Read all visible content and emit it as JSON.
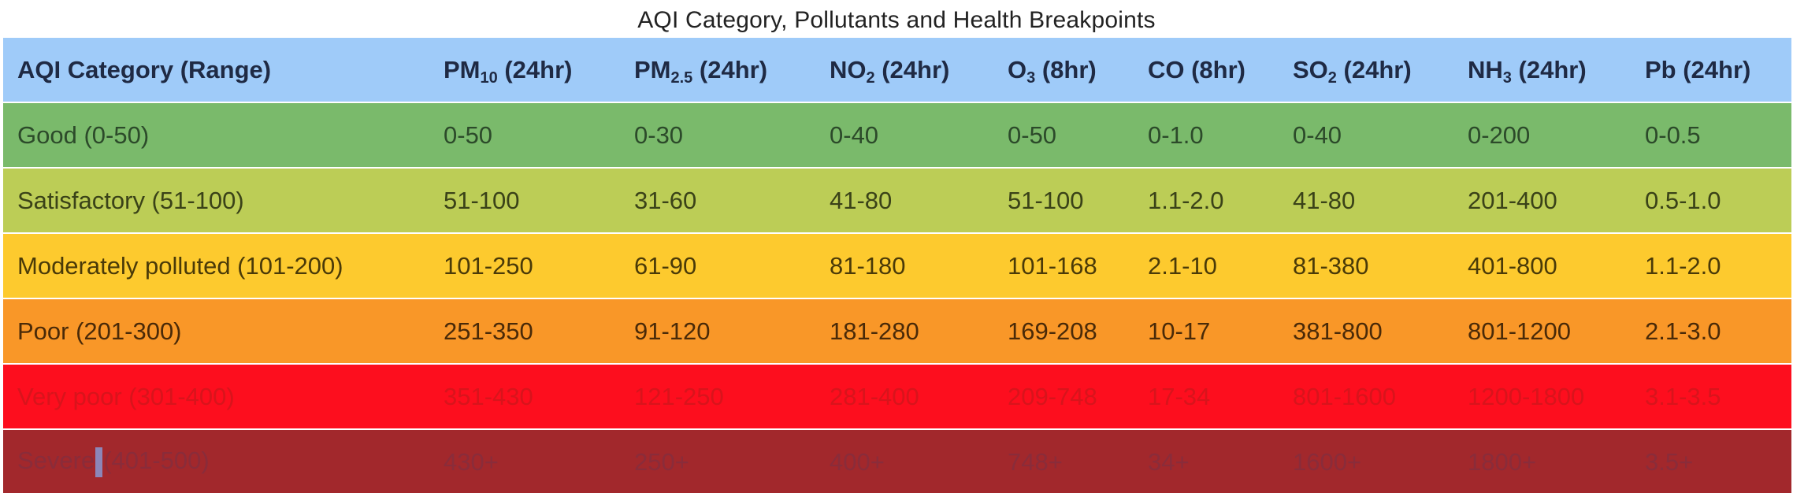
{
  "title": "AQI Category, Pollutants and Health Breakpoints",
  "headers": [
    {
      "main": "AQI Category (Range)",
      "sub": "",
      "rest": ""
    },
    {
      "main": "PM",
      "sub": "10",
      "rest": " (24hr)"
    },
    {
      "main": "PM",
      "sub": "2.5",
      "rest": " (24hr)"
    },
    {
      "main": "NO",
      "sub": "2",
      "rest": " (24hr)"
    },
    {
      "main": "O",
      "sub": "3",
      "rest": " (8hr)"
    },
    {
      "main": "CO (8hr)",
      "sub": "",
      "rest": ""
    },
    {
      "main": "SO",
      "sub": "2",
      "rest": " (24hr)"
    },
    {
      "main": "NH",
      "sub": "3",
      "rest": " (24hr)"
    },
    {
      "main": "Pb (24hr)",
      "sub": "",
      "rest": ""
    }
  ],
  "rows": [
    {
      "category": "Good (0-50)",
      "background": "#7aba6b",
      "text_color": "#2c4a2a",
      "values": [
        "0-50",
        "0-30",
        "0-40",
        "0-50",
        "0-1.0",
        "0-40",
        "0-200",
        "0-0.5"
      ]
    },
    {
      "category": "Satisfactory (51-100)",
      "background": "#bccd56",
      "text_color": "#3a4218",
      "values": [
        "51-100",
        "31-60",
        "41-80",
        "51-100",
        "1.1-2.0",
        "41-80",
        "201-400",
        "0.5-1.0"
      ]
    },
    {
      "category": "Moderately polluted (101-200)",
      "background": "#fdca2e",
      "text_color": "#4a3a08",
      "values": [
        "101-250",
        "61-90",
        "81-180",
        "101-168",
        "2.1-10",
        "81-380",
        "401-800",
        "1.1-2.0"
      ]
    },
    {
      "category": "Poor (201-300)",
      "background": "#f99728",
      "text_color": "#4a2a08",
      "values": [
        "251-350",
        "91-120",
        "181-280",
        "169-208",
        "10-17",
        "381-800",
        "801-1200",
        "2.1-3.0"
      ]
    },
    {
      "category": "Very poor (301-400)",
      "background": "#fd0e1e",
      "text_color": "#d8141c",
      "values": [
        "351-430",
        "121-250",
        "281-400",
        "209-748",
        "17-34",
        "801-1600",
        "1200-1800",
        "3.1-3.5"
      ]
    },
    {
      "category_prefix": "Severe",
      "category_suffix": "(401-500)",
      "background": "#a2282c",
      "text_color": "#8a2c3a",
      "values": [
        "430+",
        "250+",
        "400+",
        "748+",
        "34+",
        "1600+",
        "1800+",
        "3.5+"
      ]
    }
  ]
}
